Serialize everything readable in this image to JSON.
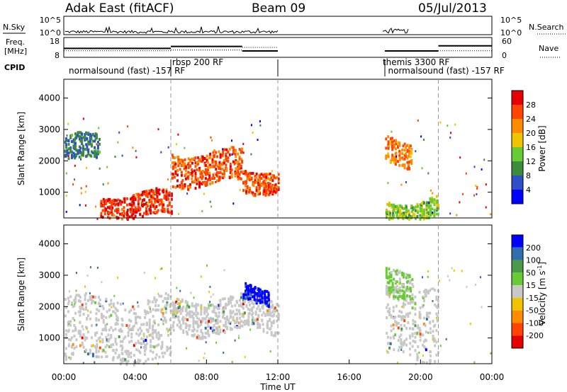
{
  "header": {
    "station": "Adak East (fitACF)",
    "beam": "Beam 09",
    "date": "05/Jul/2013"
  },
  "panel_labels": {
    "nsky": "N.Sky",
    "nsearch": "N.Search",
    "freq_line1": "Freq.",
    "freq_line2": "[MHz]",
    "nave": "Nave",
    "cpid": "CPID"
  },
  "noise_panel": {
    "left_ticks": [
      "10^5",
      "10^0"
    ],
    "right_ticks": [
      "10^5",
      "10^0"
    ]
  },
  "freq_panel": {
    "left_ticks": [
      "18",
      "8"
    ],
    "right_ticks": [
      "60",
      "0"
    ],
    "freq_mhz": {
      "x": [
        0,
        6,
        10,
        12,
        18,
        21,
        24
      ],
      "y": [
        12.5,
        13.5,
        11.2,
        11.2,
        11.2,
        13.8,
        13.8
      ]
    },
    "nave": {
      "x": [
        0,
        6,
        10,
        12,
        18,
        24
      ],
      "y": [
        20,
        22,
        30,
        30,
        20,
        44
      ]
    }
  },
  "cpid_labels": [
    {
      "text": "normalsound (fast) -157 RF",
      "start_hr": 0.2
    },
    {
      "text": "rbsp 200 RF",
      "start_hr": 6.0
    },
    {
      "text": "themis 3300 RF",
      "start_hr": 17.8
    },
    {
      "text": "normalsound (fast) -157 RF",
      "start_hr": 18.1
    }
  ],
  "colors": {
    "power": [
      "#0000ff",
      "#2d50c8",
      "#3c8c3c",
      "#66cc33",
      "#f0c400",
      "#ff8c00",
      "#ff4500",
      "#e60000"
    ],
    "velocity": [
      "#0000ff",
      "#2f6fb0",
      "#4a9a4a",
      "#66cc33",
      "#c8c8c8",
      "#f0c400",
      "#ff8c00",
      "#ff4500",
      "#e60000"
    ],
    "ground": "#c8c8c8"
  },
  "chart_data": [
    {
      "type": "heatmap",
      "title": "Power",
      "xlabel": "",
      "ylabel": "Slant Range [km]",
      "xlim": [
        0,
        24
      ],
      "ylim": [
        180,
        4600
      ],
      "y_ticks": [
        1000,
        2000,
        3000,
        4000
      ],
      "colorbar": {
        "label": "Power [dB]",
        "ticks": [
          4,
          8,
          12,
          16,
          20,
          24,
          28
        ],
        "range": [
          0,
          30
        ]
      },
      "data_gaps": [
        [
          12,
          18
        ]
      ],
      "echo_bands": [
        {
          "t0": 0.0,
          "t1": 2.0,
          "r0": 2000,
          "r1": 2800,
          "level": 8
        },
        {
          "t0": 2.0,
          "t1": 6.0,
          "r0": 200,
          "r1": 1000,
          "level": 26
        },
        {
          "t0": 6.0,
          "t1": 10.0,
          "r0": 1300,
          "r1": 2300,
          "level": 24
        },
        {
          "t0": 10.0,
          "t1": 12.0,
          "r0": 1100,
          "r1": 1800,
          "level": 24
        },
        {
          "t0": 18.0,
          "t1": 19.5,
          "r0": 1900,
          "r1": 2700,
          "level": 22
        },
        {
          "t0": 18.0,
          "t1": 21.0,
          "r0": 200,
          "r1": 800,
          "level": 14
        }
      ]
    },
    {
      "type": "heatmap",
      "title": "Velocity",
      "xlabel": "Time UT",
      "ylabel": "Slant Range [km]",
      "xlim": [
        0,
        24
      ],
      "ylim": [
        180,
        4600
      ],
      "y_ticks": [
        1000,
        2000,
        3000,
        4000
      ],
      "x_ticks": [
        "00:00",
        "04:00",
        "08:00",
        "12:00",
        "16:00",
        "20:00",
        "00:00"
      ],
      "colorbar": {
        "label": "Velocity [m s^-1]",
        "ticks": [
          200,
          100,
          50,
          15,
          -15,
          -50,
          -100,
          -200
        ]
      },
      "data_gaps": [
        [
          12,
          18
        ]
      ],
      "echo_bands": [
        {
          "t0": 0.0,
          "t1": 6.0,
          "r0": 300,
          "r1": 2300,
          "level": "ground"
        },
        {
          "t0": 6.0,
          "t1": 12.0,
          "r0": 1200,
          "r1": 2300,
          "level": "ground"
        },
        {
          "t0": 10.0,
          "t1": 11.5,
          "r0": 2200,
          "r1": 2700,
          "level": 200
        },
        {
          "t0": 18.0,
          "t1": 21.0,
          "r0": 400,
          "r1": 2800,
          "level": "ground"
        },
        {
          "t0": 18.0,
          "t1": 19.5,
          "r0": 2300,
          "r1": 3200,
          "level": 40
        }
      ]
    }
  ]
}
